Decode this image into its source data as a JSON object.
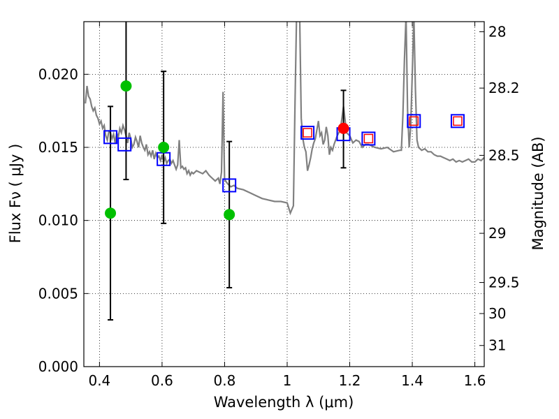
{
  "chart_data": {
    "type": "scatter",
    "xlabel": "Wavelength  λ (μm)",
    "ylabel": "Flux  Fν  ( μJy )",
    "y2label": "Magnitude (AB)",
    "xlim": [
      0.35,
      1.63
    ],
    "ylim": [
      0.0,
      0.0236
    ],
    "grid": true,
    "x_ticks": [
      {
        "value": 0.4,
        "label": "0.4"
      },
      {
        "value": 0.6,
        "label": "0.6"
      },
      {
        "value": 0.8,
        "label": "0.8"
      },
      {
        "value": 1.0,
        "label": "1"
      },
      {
        "value": 1.2,
        "label": "1.2"
      },
      {
        "value": 1.4,
        "label": "1.4"
      },
      {
        "value": 1.6,
        "label": "1.6"
      }
    ],
    "y_ticks": [
      {
        "value": 0.0,
        "label": "0.000"
      },
      {
        "value": 0.005,
        "label": "0.005"
      },
      {
        "value": 0.01,
        "label": "0.010"
      },
      {
        "value": 0.015,
        "label": "0.015"
      },
      {
        "value": 0.02,
        "label": "0.020"
      }
    ],
    "y2_ticks": [
      {
        "mag": 28,
        "label": "28"
      },
      {
        "mag": 28.2,
        "label": "28.2"
      },
      {
        "mag": 28.5,
        "label": "28.5"
      },
      {
        "mag": 29,
        "label": "29"
      },
      {
        "mag": 29.5,
        "label": "29.5"
      },
      {
        "mag": 30,
        "label": "30"
      },
      {
        "mag": 31,
        "label": "31"
      }
    ],
    "series": [
      {
        "name": "model-spectrum",
        "kind": "line",
        "color": "#808080",
        "x": [
          0.355,
          0.36,
          0.365,
          0.37,
          0.375,
          0.38,
          0.385,
          0.39,
          0.395,
          0.4,
          0.405,
          0.41,
          0.415,
          0.42,
          0.425,
          0.43,
          0.435,
          0.44,
          0.445,
          0.45,
          0.455,
          0.46,
          0.465,
          0.47,
          0.475,
          0.48,
          0.485,
          0.49,
          0.495,
          0.5,
          0.505,
          0.51,
          0.515,
          0.52,
          0.525,
          0.53,
          0.535,
          0.54,
          0.545,
          0.55,
          0.555,
          0.56,
          0.565,
          0.57,
          0.575,
          0.58,
          0.585,
          0.59,
          0.595,
          0.6,
          0.605,
          0.61,
          0.615,
          0.62,
          0.625,
          0.63,
          0.635,
          0.64,
          0.645,
          0.65,
          0.655,
          0.66,
          0.665,
          0.67,
          0.675,
          0.68,
          0.685,
          0.69,
          0.695,
          0.7,
          0.71,
          0.72,
          0.73,
          0.74,
          0.75,
          0.76,
          0.77,
          0.78,
          0.785,
          0.79,
          0.795,
          0.8,
          0.81,
          0.82,
          0.83,
          0.84,
          0.86,
          0.88,
          0.9,
          0.92,
          0.94,
          0.96,
          0.98,
          1.0,
          1.01,
          1.02,
          1.025,
          1.03,
          1.035,
          1.04,
          1.045,
          1.05,
          1.055,
          1.06,
          1.065,
          1.07,
          1.075,
          1.08,
          1.085,
          1.09,
          1.095,
          1.1,
          1.105,
          1.11,
          1.115,
          1.12,
          1.125,
          1.13,
          1.135,
          1.14,
          1.145,
          1.15,
          1.16,
          1.17,
          1.18,
          1.19,
          1.2,
          1.21,
          1.22,
          1.23,
          1.24,
          1.25,
          1.26,
          1.27,
          1.28,
          1.3,
          1.32,
          1.34,
          1.36,
          1.365,
          1.37,
          1.375,
          1.38,
          1.385,
          1.39,
          1.395,
          1.4,
          1.405,
          1.41,
          1.415,
          1.42,
          1.43,
          1.44,
          1.45,
          1.46,
          1.47,
          1.48,
          1.49,
          1.5,
          1.51,
          1.52,
          1.53,
          1.54,
          1.55,
          1.56,
          1.57,
          1.58,
          1.59,
          1.6,
          1.61,
          1.62,
          1.63
        ],
        "y": [
          0.018,
          0.0192,
          0.0185,
          0.0183,
          0.0178,
          0.0175,
          0.0177,
          0.0172,
          0.017,
          0.0166,
          0.0168,
          0.0163,
          0.0165,
          0.0158,
          0.0155,
          0.0161,
          0.016,
          0.0156,
          0.0159,
          0.0153,
          0.016,
          0.0157,
          0.0163,
          0.016,
          0.0165,
          0.0162,
          0.0158,
          0.0153,
          0.016,
          0.0156,
          0.015,
          0.0152,
          0.0157,
          0.0154,
          0.015,
          0.0158,
          0.0153,
          0.015,
          0.0148,
          0.0152,
          0.0145,
          0.0147,
          0.0144,
          0.0148,
          0.0142,
          0.0146,
          0.0143,
          0.0144,
          0.0141,
          0.0145,
          0.014,
          0.0143,
          0.0139,
          0.0141,
          0.0142,
          0.0139,
          0.0141,
          0.0138,
          0.0135,
          0.0138,
          0.0155,
          0.0136,
          0.0137,
          0.0135,
          0.0136,
          0.0132,
          0.0134,
          0.0131,
          0.0133,
          0.0132,
          0.0134,
          0.0133,
          0.0132,
          0.0134,
          0.0131,
          0.0129,
          0.0127,
          0.0129,
          0.0125,
          0.0133,
          0.0188,
          0.0128,
          0.0125,
          0.0123,
          0.0124,
          0.0122,
          0.0121,
          0.0119,
          0.0117,
          0.0115,
          0.0114,
          0.0113,
          0.0113,
          0.0112,
          0.0105,
          0.011,
          0.018,
          0.024,
          0.024,
          0.024,
          0.017,
          0.0156,
          0.015,
          0.0147,
          0.0134,
          0.0138,
          0.0143,
          0.0149,
          0.0153,
          0.0156,
          0.0162,
          0.0168,
          0.0158,
          0.016,
          0.0152,
          0.0155,
          0.0164,
          0.0158,
          0.0145,
          0.015,
          0.0148,
          0.0152,
          0.0158,
          0.0162,
          0.0178,
          0.016,
          0.0158,
          0.0153,
          0.0155,
          0.0154,
          0.015,
          0.0152,
          0.0152,
          0.0151,
          0.015,
          0.0149,
          0.015,
          0.0147,
          0.0148,
          0.0148,
          0.0172,
          0.021,
          0.024,
          0.0175,
          0.015,
          0.0165,
          0.02,
          0.024,
          0.019,
          0.0155,
          0.015,
          0.0148,
          0.0149,
          0.0147,
          0.0147,
          0.0145,
          0.0144,
          0.0144,
          0.0143,
          0.0142,
          0.0141,
          0.0142,
          0.014,
          0.0141,
          0.014,
          0.0141,
          0.0142,
          0.014,
          0.014,
          0.0142,
          0.0141,
          0.0143
        ]
      },
      {
        "name": "blue-squares",
        "kind": "marker",
        "marker": "open-square",
        "color": "#0000ff",
        "x": [
          0.435,
          0.48,
          0.605,
          0.815,
          1.065,
          1.18,
          1.26,
          1.405,
          1.545
        ],
        "y": [
          0.0157,
          0.0152,
          0.0142,
          0.0124,
          0.016,
          0.0159,
          0.0156,
          0.0168,
          0.0168
        ]
      },
      {
        "name": "red-squares",
        "kind": "marker",
        "marker": "small-open-square",
        "color": "#ff0000",
        "x": [
          1.065,
          1.26,
          1.405,
          1.545
        ],
        "y": [
          0.016,
          0.0156,
          0.0168,
          0.0168
        ]
      },
      {
        "name": "green-circles",
        "kind": "marker",
        "marker": "filled-circle",
        "color": "#00c000",
        "x": [
          0.435,
          0.485,
          0.605,
          0.815
        ],
        "y": [
          0.0105,
          0.0192,
          0.015,
          0.0104
        ]
      },
      {
        "name": "red-circle",
        "kind": "marker",
        "marker": "filled-circle",
        "color": "#ff0000",
        "x": [
          1.18
        ],
        "y": [
          0.0163
        ]
      }
    ],
    "error_bars": [
      {
        "x": 0.435,
        "low": 0.0032,
        "high": 0.0178
      },
      {
        "x": 0.485,
        "low": 0.0128,
        "high": 0.024
      },
      {
        "x": 0.605,
        "low": 0.0098,
        "high": 0.0202
      },
      {
        "x": 0.815,
        "low": 0.0054,
        "high": 0.0154
      },
      {
        "x": 1.18,
        "low": 0.0136,
        "high": 0.0189
      }
    ]
  }
}
